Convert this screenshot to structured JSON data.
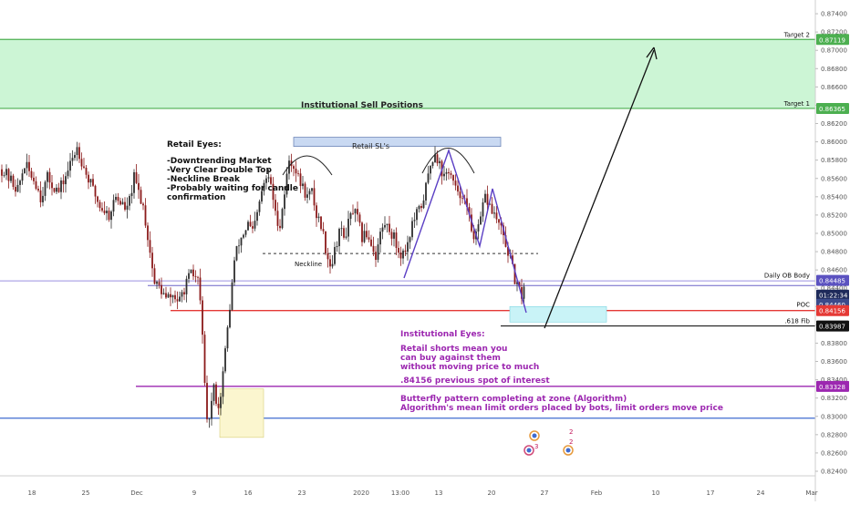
{
  "chart_data": {
    "type": "candlestick",
    "y_range": [
      0.8235,
      0.8755
    ],
    "y_ticks": [
      "0.87400",
      "0.87200",
      "0.87000",
      "0.86800",
      "0.86600",
      "0.86400",
      "0.86200",
      "0.86000",
      "0.85800",
      "0.85600",
      "0.85400",
      "0.85200",
      "0.85000",
      "0.84800",
      "0.84600",
      "0.84400",
      "0.84200",
      "0.84000",
      "0.83800",
      "0.83600",
      "0.83400",
      "0.83200",
      "0.83000",
      "0.82800",
      "0.82600",
      "0.82400"
    ],
    "x_ticks": [
      "18",
      "25",
      "Dec",
      "9",
      "16",
      "23",
      "2020",
      "13:00",
      "13",
      "20",
      "27",
      "Feb",
      "10",
      "17",
      "24",
      "Mar"
    ],
    "bars": 174,
    "price_path": [
      [
        0,
        0.857
      ],
      [
        7,
        0.8548
      ],
      [
        10,
        0.8575
      ],
      [
        15,
        0.8555
      ],
      [
        17,
        0.854
      ],
      [
        20,
        0.856
      ],
      [
        25,
        0.8545
      ],
      [
        30,
        0.8575
      ],
      [
        33,
        0.8595
      ],
      [
        37,
        0.8565
      ],
      [
        43,
        0.853
      ],
      [
        47,
        0.852
      ],
      [
        50,
        0.854
      ],
      [
        55,
        0.8525
      ],
      [
        58,
        0.856
      ],
      [
        62,
        0.853
      ],
      [
        65,
        0.848
      ],
      [
        67,
        0.8445
      ],
      [
        69,
        0.8442
      ],
      [
        72,
        0.8428
      ],
      [
        75,
        0.8432
      ],
      [
        78,
        0.8425
      ],
      [
        80,
        0.844
      ],
      [
        83,
        0.8455
      ],
      [
        86,
        0.845
      ],
      [
        88,
        0.8395
      ],
      [
        89,
        0.833
      ],
      [
        90,
        0.829
      ],
      [
        91,
        0.83
      ],
      [
        93,
        0.833
      ],
      [
        95,
        0.831
      ],
      [
        96,
        0.8325
      ],
      [
        98,
        0.837
      ],
      [
        100,
        0.842
      ],
      [
        102,
        0.847
      ],
      [
        104,
        0.849
      ],
      [
        106,
        0.85
      ],
      [
        108,
        0.851
      ],
      [
        110,
        0.85
      ],
      [
        112,
        0.852
      ],
      [
        114,
        0.8545
      ],
      [
        116,
        0.856
      ],
      [
        118,
        0.8555
      ],
      [
        120,
        0.852
      ],
      [
        122,
        0.851
      ],
      [
        124,
        0.8545
      ],
      [
        126,
        0.858
      ],
      [
        128,
        0.8575
      ],
      [
        130,
        0.856
      ],
      [
        132,
        0.855
      ],
      [
        134,
        0.854
      ],
      [
        136,
        0.8545
      ],
      [
        138,
        0.852
      ],
      [
        140,
        0.851
      ],
      [
        142,
        0.8485
      ],
      [
        144,
        0.8465
      ],
      [
        146,
        0.848
      ],
      [
        148,
        0.8505
      ],
      [
        150,
        0.8495
      ],
      [
        152,
        0.851
      ],
      [
        154,
        0.8525
      ],
      [
        156,
        0.8515
      ],
      [
        158,
        0.8495
      ],
      [
        160,
        0.85
      ],
      [
        162,
        0.849
      ],
      [
        164,
        0.8475
      ],
      [
        166,
        0.85
      ],
      [
        168,
        0.851
      ],
      [
        170,
        0.8505
      ],
      [
        172,
        0.8495
      ],
      [
        174,
        0.848
      ],
      [
        176,
        0.8478
      ],
      [
        178,
        0.849
      ],
      [
        180,
        0.851
      ],
      [
        182,
        0.852
      ],
      [
        184,
        0.853
      ],
      [
        186,
        0.855
      ],
      [
        188,
        0.8575
      ],
      [
        190,
        0.859
      ],
      [
        192,
        0.8575
      ],
      [
        194,
        0.856
      ],
      [
        196,
        0.857
      ],
      [
        198,
        0.8555
      ],
      [
        200,
        0.854
      ],
      [
        202,
        0.8545
      ],
      [
        204,
        0.8525
      ],
      [
        206,
        0.8505
      ],
      [
        208,
        0.8495
      ],
      [
        210,
        0.8515
      ],
      [
        212,
        0.854
      ],
      [
        214,
        0.853
      ],
      [
        216,
        0.852
      ],
      [
        218,
        0.851
      ],
      [
        220,
        0.8495
      ],
      [
        222,
        0.848
      ],
      [
        224,
        0.846
      ],
      [
        226,
        0.844
      ],
      [
        228,
        0.8432
      ],
      [
        229,
        0.8445
      ]
    ],
    "zones": [
      {
        "name": "target-zone",
        "y_top": 0.87119,
        "y_bottom": 0.86365,
        "label": "Institutional Sell Positions"
      },
      {
        "name": "retail-sl-zone",
        "y_top": 0.8605,
        "y_bottom": 0.8595,
        "label": "Retail SL's"
      },
      {
        "name": "entry-zone",
        "y_top": 0.842,
        "y_bottom": 0.8403,
        "label": ""
      },
      {
        "name": "stop-hunt-zone",
        "y_top": 0.833,
        "y_bottom": 0.8277,
        "label": ""
      }
    ],
    "levels": [
      {
        "name": "target-2",
        "y": 0.87119,
        "label": "Target 2",
        "badge": "0.87119",
        "color": "#4caf50"
      },
      {
        "name": "target-1",
        "y": 0.86365,
        "label": "Target 1",
        "badge": "0.86365",
        "color": "#4caf50"
      },
      {
        "name": "daily-ob-body",
        "y": 0.84485,
        "label": "Daily OB Body",
        "badge": "0.84485",
        "color": "#6c63c7"
      },
      {
        "name": "poc",
        "y": 0.84156,
        "label": "POC",
        "badge": "0.84156",
        "color": "#e53935"
      },
      {
        "name": "fib-618",
        "y": 0.83987,
        "label": ".618 Fib",
        "badge": "0.83987",
        "color": "#000000"
      },
      {
        "name": "butterfly",
        "y": 0.83328,
        "label": "",
        "badge": "0.83328",
        "color": "#9c27b0"
      },
      {
        "name": "blue-support",
        "y": 0.8298,
        "label": "",
        "badge": "",
        "color": "#3f6bd1"
      },
      {
        "name": "neckline",
        "y": 0.8478,
        "label": "Neckline",
        "badge": "",
        "color": "#333333"
      }
    ],
    "current_price": {
      "badge": "0.84460",
      "countdown": "01:22:34"
    },
    "colors": {
      "up": "#2e2e2e",
      "down": "#8b1a1a",
      "zone_green": "#ccf5d5",
      "zone_cyan": "#c9f3f7",
      "zone_yellow": "#fbf6cf",
      "purple_text": "#9c27b0",
      "pattern": "#5b3fc4"
    }
  },
  "annotations": {
    "retail_title": "Retail Eyes:",
    "retail_lines": [
      "-Downtrending Market",
      "-Very Clear Double Top",
      "-Neckline Break",
      "-Probably waiting for candle",
      "confirmation"
    ],
    "institutional_sell": "Institutional Sell Positions",
    "retail_sl": "Retail SL's",
    "neckline": "Neckline",
    "inst_title": "Institutional Eyes:",
    "inst_lines": [
      "Retail shorts mean you",
      "can buy against them",
      "without moving price to much"
    ],
    "inst_poi": ".84156 previous spot of interest",
    "inst_butterfly": [
      "Butterfly pattern completing at zone (Algorithm)",
      "Algorithm's mean limit orders placed by bots, limit orders move price"
    ]
  },
  "event_badges": [
    "2",
    "3",
    "2"
  ]
}
